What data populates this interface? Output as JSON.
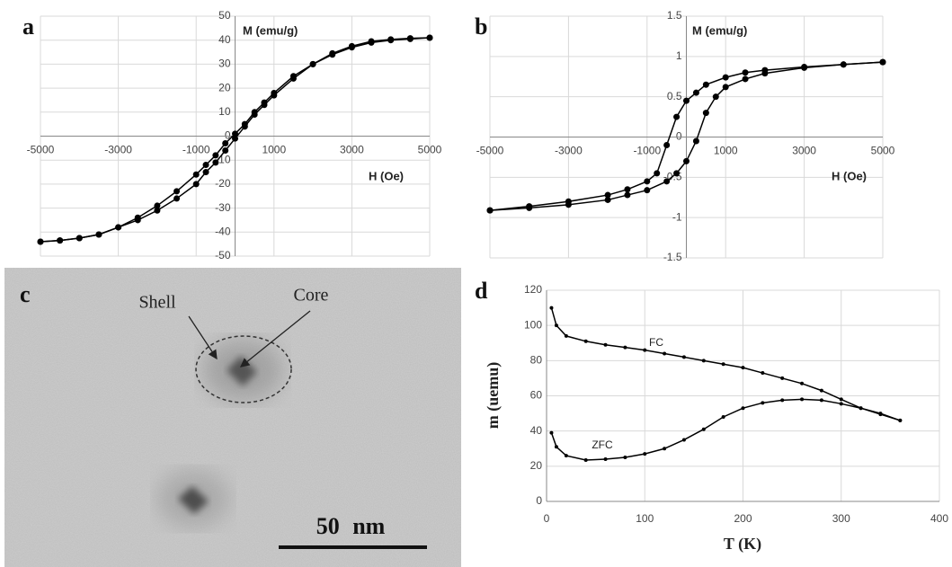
{
  "chart_data": [
    {
      "type": "line",
      "panel_label": "a",
      "y_label": "M (emu/g)",
      "x_label": "H (Oe)",
      "xlim": [
        -5000,
        5000
      ],
      "xticks": [
        -5000,
        -3000,
        -1000,
        1000,
        3000,
        5000
      ],
      "ylim": [
        -50,
        50
      ],
      "yticks": [
        -50,
        -40,
        -30,
        -20,
        -10,
        0,
        10,
        20,
        30,
        40,
        50
      ],
      "grid": true,
      "axes_cross_at_zero": true,
      "series": [
        {
          "color": "#000000",
          "x": [
            5000,
            4500,
            4000,
            3500,
            3000,
            2500,
            2000,
            1500,
            1000,
            750,
            500,
            250,
            0,
            -250,
            -500,
            -750,
            -1000,
            -1500,
            -2000,
            -2500,
            -3000,
            -3500,
            -4000,
            -4500,
            -5000
          ],
          "values": [
            41,
            40.5,
            40,
            39,
            37,
            34,
            30,
            25,
            18,
            14,
            10,
            5,
            1,
            -3,
            -8,
            -12,
            -16,
            -23,
            -29,
            -34,
            -38,
            -41,
            -42.5,
            -43.5,
            -44
          ]
        },
        {
          "color": "#000000",
          "x": [
            -5000,
            -4500,
            -4000,
            -3500,
            -3000,
            -2500,
            -2000,
            -1500,
            -1000,
            -750,
            -500,
            -250,
            0,
            250,
            500,
            750,
            1000,
            1500,
            2000,
            2500,
            3000,
            3500,
            4000,
            4500,
            5000
          ],
          "values": [
            -44,
            -43.5,
            -42.5,
            -41,
            -38,
            -35,
            -31,
            -26,
            -20,
            -15,
            -11,
            -6,
            -1,
            4,
            9,
            13,
            17,
            24,
            30,
            34.5,
            37.5,
            39.5,
            40.3,
            40.8,
            41
          ]
        }
      ]
    },
    {
      "type": "line",
      "panel_label": "b",
      "y_label": "M (emu/g)",
      "x_label": "H (Oe)",
      "xlim": [
        -5000,
        5000
      ],
      "xticks": [
        -5000,
        -3000,
        -1000,
        1000,
        3000,
        5000
      ],
      "ylim": [
        -1.5,
        1.5
      ],
      "yticks": [
        -1.5,
        -1,
        -0.5,
        0,
        0.5,
        1,
        1.5
      ],
      "grid": true,
      "axes_cross_at_zero": true,
      "series": [
        {
          "color": "#000000",
          "x": [
            5000,
            4000,
            3000,
            2000,
            1500,
            1000,
            500,
            250,
            0,
            -250,
            -500,
            -750,
            -1000,
            -1500,
            -2000,
            -3000,
            -4000,
            -5000
          ],
          "values": [
            0.93,
            0.9,
            0.87,
            0.83,
            0.8,
            0.74,
            0.65,
            0.55,
            0.45,
            0.25,
            -0.1,
            -0.45,
            -0.55,
            -0.65,
            -0.72,
            -0.8,
            -0.86,
            -0.91
          ]
        },
        {
          "color": "#000000",
          "x": [
            -5000,
            -4000,
            -3000,
            -2000,
            -1500,
            -1000,
            -500,
            -250,
            0,
            250,
            500,
            750,
            1000,
            1500,
            2000,
            3000,
            4000,
            5000
          ],
          "values": [
            -0.91,
            -0.88,
            -0.84,
            -0.78,
            -0.72,
            -0.66,
            -0.55,
            -0.45,
            -0.3,
            -0.05,
            0.3,
            0.5,
            0.62,
            0.72,
            0.79,
            0.86,
            0.9,
            0.93
          ]
        }
      ]
    },
    {
      "type": "line",
      "panel_label": "d",
      "y_label": "m (uemu)",
      "x_label": "T (K)",
      "xlim": [
        0,
        400
      ],
      "xticks": [
        0,
        100,
        200,
        300,
        400
      ],
      "ylim": [
        0,
        120
      ],
      "yticks": [
        0,
        20,
        40,
        60,
        80,
        100,
        120
      ],
      "grid": true,
      "axes_cross_at_zero": false,
      "series": [
        {
          "name": "FC",
          "color": "#000000",
          "x": [
            5,
            10,
            20,
            40,
            60,
            80,
            100,
            120,
            140,
            160,
            180,
            200,
            220,
            240,
            260,
            280,
            300,
            320,
            340,
            360
          ],
          "values": [
            110,
            100,
            94,
            91,
            89,
            87.5,
            86,
            84,
            82,
            80,
            78,
            76,
            73,
            70,
            67,
            63,
            58,
            53,
            50,
            46
          ]
        },
        {
          "name": "ZFC",
          "color": "#000000",
          "x": [
            5,
            10,
            20,
            40,
            60,
            80,
            100,
            120,
            140,
            160,
            180,
            200,
            220,
            240,
            260,
            280,
            300,
            320,
            340,
            360
          ],
          "values": [
            39,
            31,
            26,
            23.5,
            24,
            25,
            27,
            30,
            35,
            41,
            48,
            53,
            56,
            57.5,
            58,
            57.5,
            55.5,
            53,
            49.5,
            46
          ]
        }
      ]
    }
  ],
  "image_panel": {
    "panel_label": "c",
    "shell_label": "Shell",
    "core_label": "Core",
    "scale_bar": "50 nm"
  }
}
